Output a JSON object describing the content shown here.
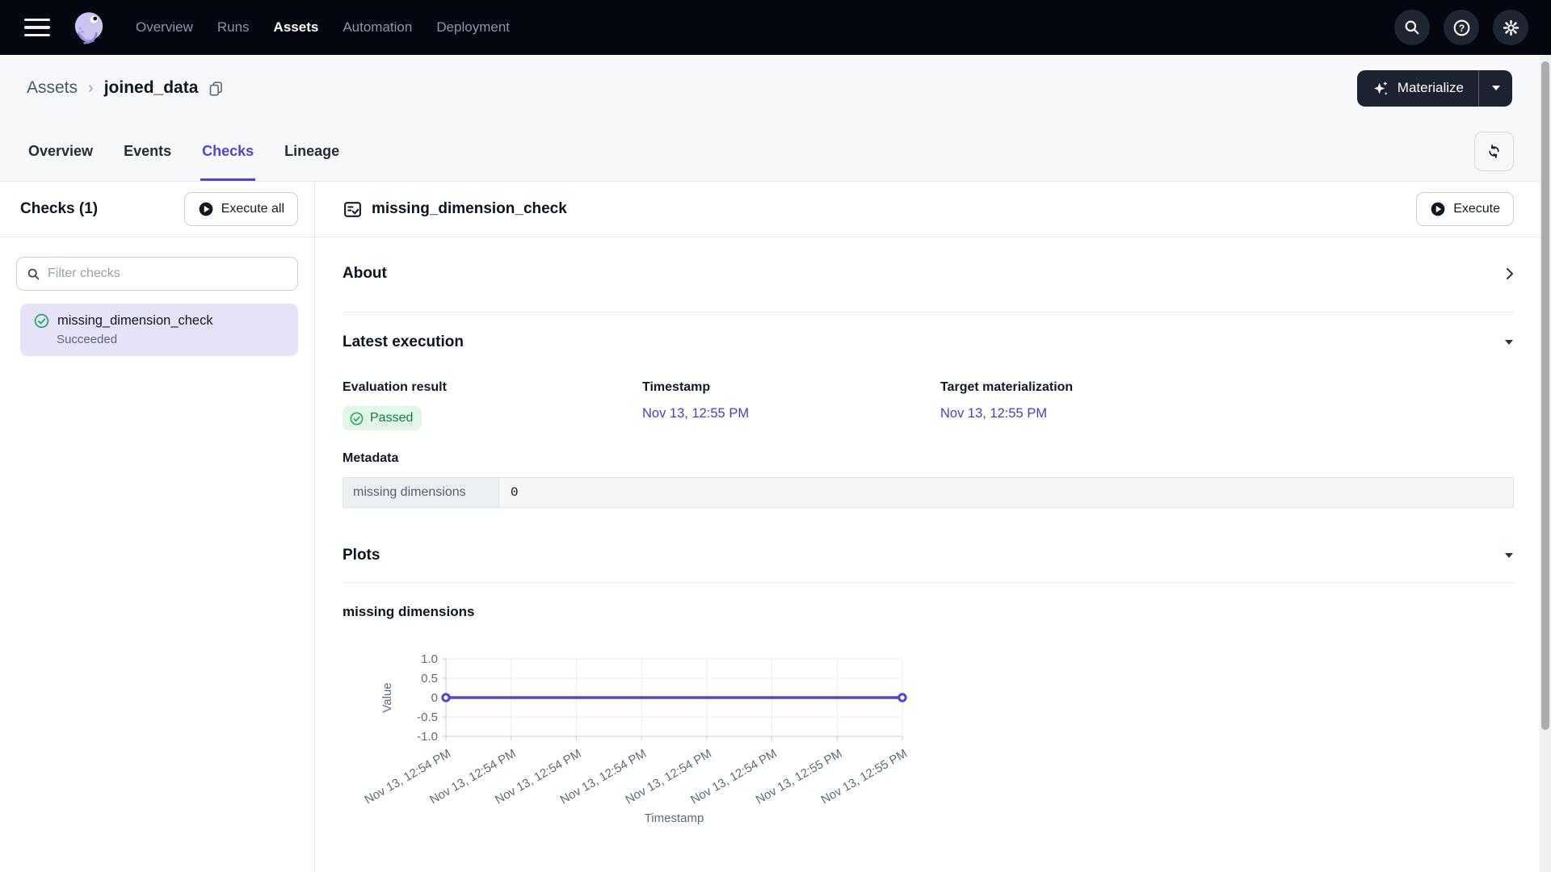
{
  "navbar": {
    "items": [
      {
        "label": "Overview"
      },
      {
        "label": "Runs"
      },
      {
        "label": "Assets"
      },
      {
        "label": "Automation"
      },
      {
        "label": "Deployment"
      }
    ]
  },
  "breadcrumb": {
    "root": "Assets",
    "separator": "›",
    "current": "joined_data"
  },
  "materialize": {
    "label": "Materialize"
  },
  "tabs": [
    {
      "label": "Overview"
    },
    {
      "label": "Events"
    },
    {
      "label": "Checks"
    },
    {
      "label": "Lineage"
    }
  ],
  "sidebar": {
    "title": "Checks (1)",
    "execute_all_label": "Execute all",
    "filter_placeholder": "Filter checks",
    "checks": [
      {
        "name": "missing_dimension_check",
        "status": "Succeeded"
      }
    ]
  },
  "main": {
    "title": "missing_dimension_check",
    "execute_label": "Execute",
    "sections": {
      "about": "About",
      "latest_execution": "Latest execution",
      "plots": "Plots"
    },
    "latest_execution": {
      "fields": [
        {
          "label": "Evaluation result",
          "value": "Passed"
        },
        {
          "label": "Timestamp",
          "value": "Nov 13, 12:55 PM"
        },
        {
          "label": "Target materialization",
          "value": "Nov 13, 12:55 PM"
        }
      ],
      "metadata_label": "Metadata",
      "metadata_rows": [
        {
          "key": "missing dimensions",
          "value": "0"
        }
      ]
    }
  },
  "chart_data": {
    "type": "line",
    "title": "missing dimensions",
    "xlabel": "Timestamp",
    "ylabel": "Value",
    "x": [
      "Nov 13, 12:54 PM",
      "Nov 13, 12:54 PM",
      "Nov 13, 12:54 PM",
      "Nov 13, 12:54 PM",
      "Nov 13, 12:54 PM",
      "Nov 13, 12:54 PM",
      "Nov 13, 12:55 PM",
      "Nov 13, 12:55 PM"
    ],
    "series": [
      {
        "name": "missing dimensions",
        "values": [
          0,
          0,
          0,
          0,
          0,
          0,
          0,
          0
        ]
      }
    ],
    "ylim": [
      -1.0,
      1.0
    ],
    "yticks": [
      1,
      0.5,
      0,
      -0.5,
      -1
    ],
    "ytick_labels": [
      "1.0",
      "0.5",
      "0",
      "-0.5",
      "-1.0"
    ],
    "grid": true,
    "legend": "none",
    "line_color": "#4F43DD"
  },
  "colors": {
    "accent": "#4F43DD",
    "link": "#453EC8",
    "passed_bg": "#E2F7E8",
    "passed_text": "#13784B",
    "success_green": "#23A564",
    "navbar_bg": "#04070F",
    "selected_item_bg": "#E6E3F9"
  }
}
